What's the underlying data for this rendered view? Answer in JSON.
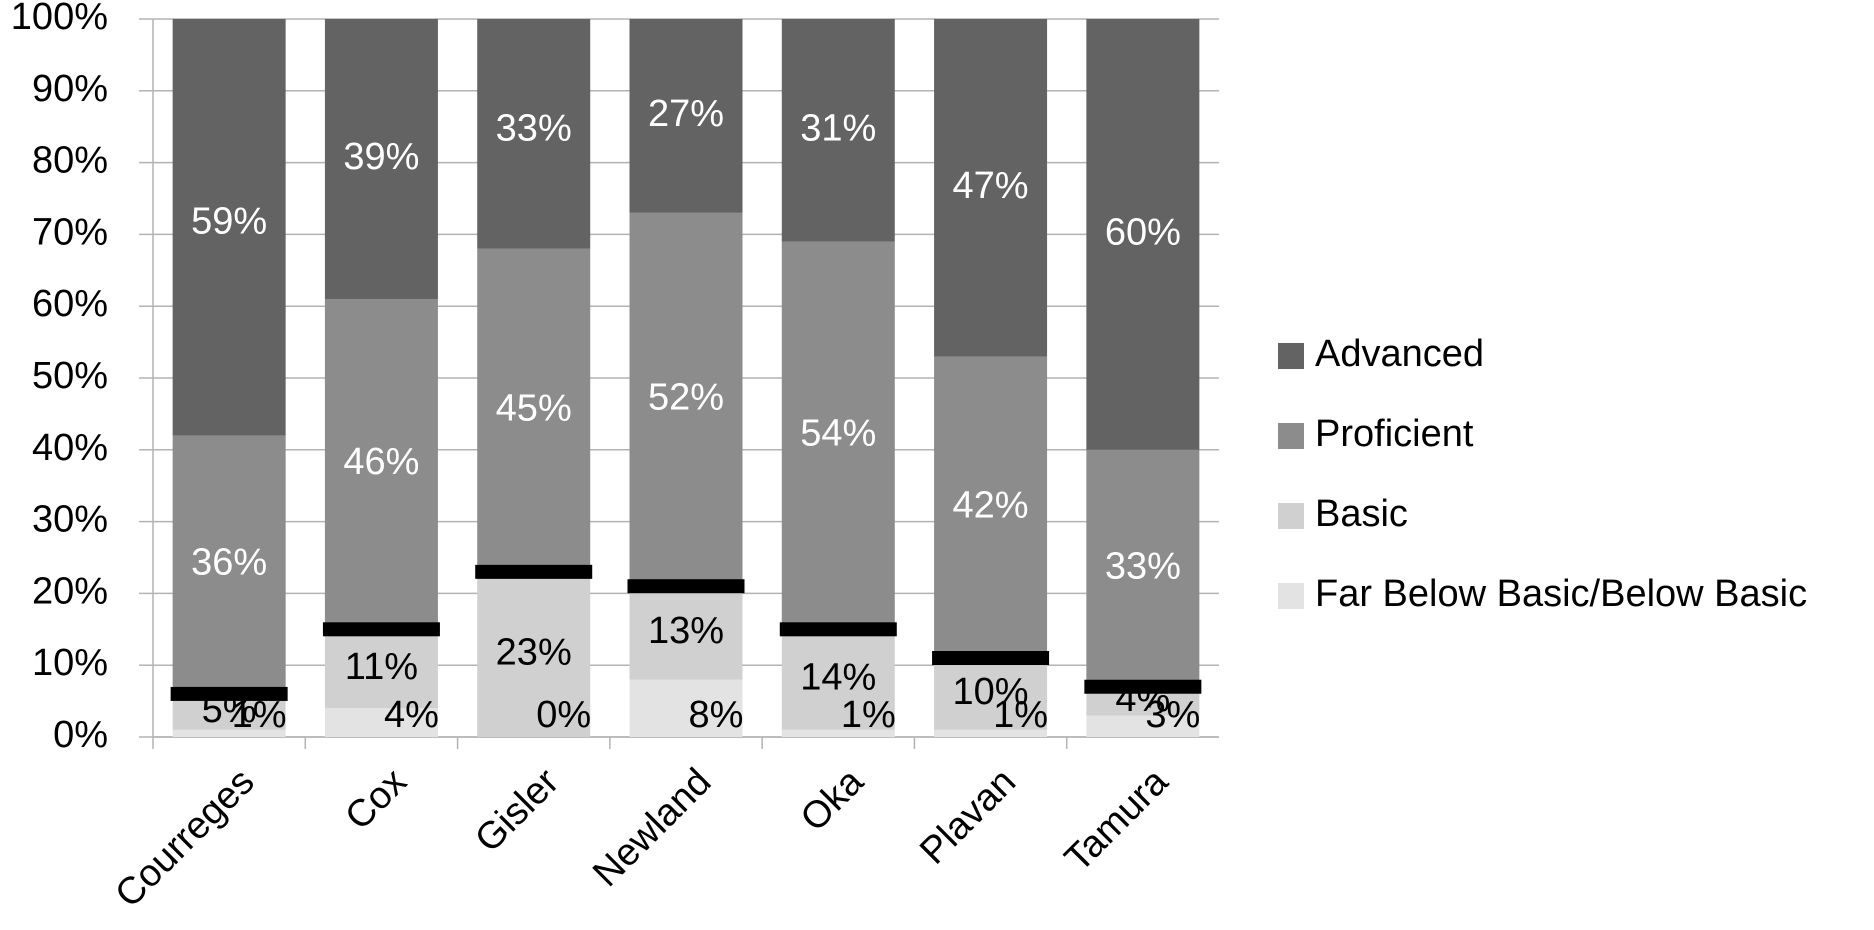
{
  "chart_data": {
    "type": "stacked-bar",
    "categories": [
      "Courreges",
      "Cox",
      "Gisler",
      "Newland",
      "Oka",
      "Plavan",
      "Tamura"
    ],
    "series": [
      {
        "name": "Far Below Basic/Below Basic",
        "color": "#e3e3e3",
        "label_color": "#000000",
        "values": [
          1,
          4,
          0,
          8,
          1,
          1,
          3
        ],
        "value_labels": [
          "1%",
          "4%",
          "0%",
          "8%",
          "1%",
          "1%",
          "3%"
        ]
      },
      {
        "name": "Basic",
        "color": "#d0d0d0",
        "label_color": "#000000",
        "values": [
          5,
          11,
          23,
          13,
          14,
          10,
          4
        ],
        "value_labels": [
          "5%",
          "11%",
          "23%",
          "13%",
          "14%",
          "10%",
          "4%"
        ]
      },
      {
        "name": "Proficient",
        "color": "#8c8c8c",
        "label_color": "#ffffff",
        "values": [
          36,
          46,
          45,
          52,
          54,
          42,
          33
        ],
        "value_labels": [
          "36%",
          "46%",
          "45%",
          "52%",
          "54%",
          "42%",
          "33%"
        ]
      },
      {
        "name": "Advanced",
        "color": "#636363",
        "label_color": "#ffffff",
        "values": [
          59,
          39,
          33,
          27,
          31,
          47,
          60
        ],
        "value_labels": [
          "59%",
          "39%",
          "33%",
          "27%",
          "31%",
          "47%",
          "60%"
        ]
      }
    ],
    "ylim": [
      0,
      100
    ],
    "yticks": [
      {
        "value": 0,
        "label": "0%"
      },
      {
        "value": 10,
        "label": "10%"
      },
      {
        "value": 20,
        "label": "20%"
      },
      {
        "value": 30,
        "label": "30%"
      },
      {
        "value": 40,
        "label": "40%"
      },
      {
        "value": 50,
        "label": "50%"
      },
      {
        "value": 60,
        "label": "60%"
      },
      {
        "value": 70,
        "label": "70%"
      },
      {
        "value": 80,
        "label": "80%"
      },
      {
        "value": 90,
        "label": "90%"
      },
      {
        "value": 100,
        "label": "100%"
      }
    ],
    "grid": true,
    "legend": "right",
    "marker_color": "#000000"
  }
}
